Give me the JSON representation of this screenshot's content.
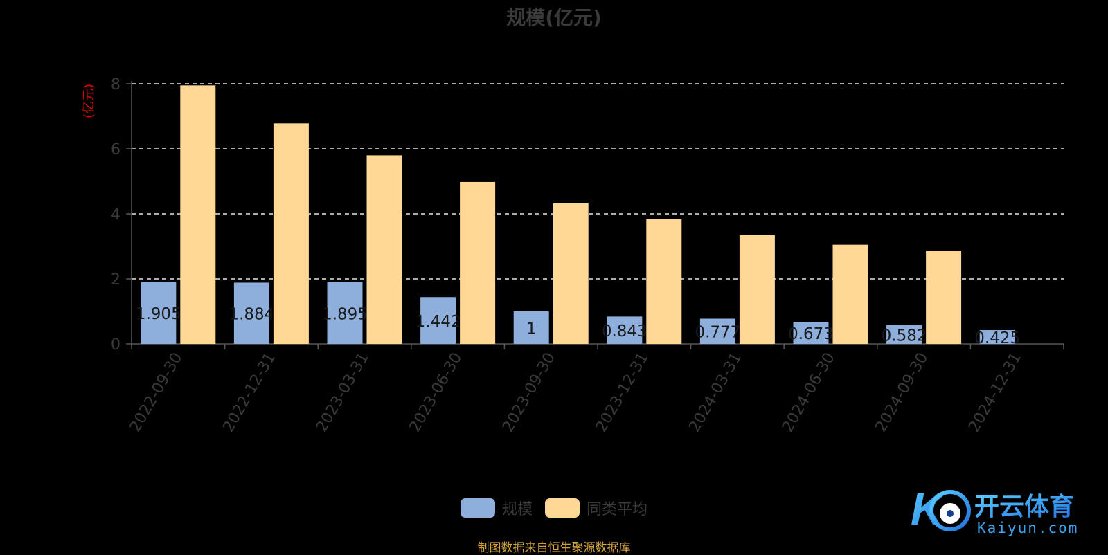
{
  "chart_data": {
    "type": "bar",
    "title": "规模(亿元)",
    "ylabel": "(亿元)",
    "xlabel": "",
    "ylim": [
      0,
      8
    ],
    "yticks": [
      0,
      2,
      4,
      6,
      8
    ],
    "grid": true,
    "legend_position": "bottom",
    "categories": [
      "2022-09-30",
      "2022-12-31",
      "2023-03-31",
      "2023-06-30",
      "2023-09-30",
      "2023-12-31",
      "2024-03-31",
      "2024-06-30",
      "2024-09-30",
      "2024-12-31"
    ],
    "series": [
      {
        "name": "规模",
        "color": "#8eaedb",
        "values": [
          1.905,
          1.884,
          1.895,
          1.442,
          1,
          0.843,
          0.777,
          0.673,
          0.582,
          0.425
        ],
        "labels": [
          "1.905",
          "1.884",
          "1.895",
          "1.442",
          "1",
          "0.843",
          "0.777",
          "0.673",
          "0.582",
          "0.425"
        ]
      },
      {
        "name": "同类平均",
        "color": "#ffd895",
        "values": [
          7.95,
          6.78,
          5.8,
          4.98,
          4.32,
          3.84,
          3.35,
          3.05,
          2.87,
          null
        ]
      }
    ]
  },
  "footer": {
    "source": "制图数据来自恒生聚源数据库"
  },
  "watermark": {
    "brand": "开云体育",
    "url": "Kaiyun.com"
  }
}
